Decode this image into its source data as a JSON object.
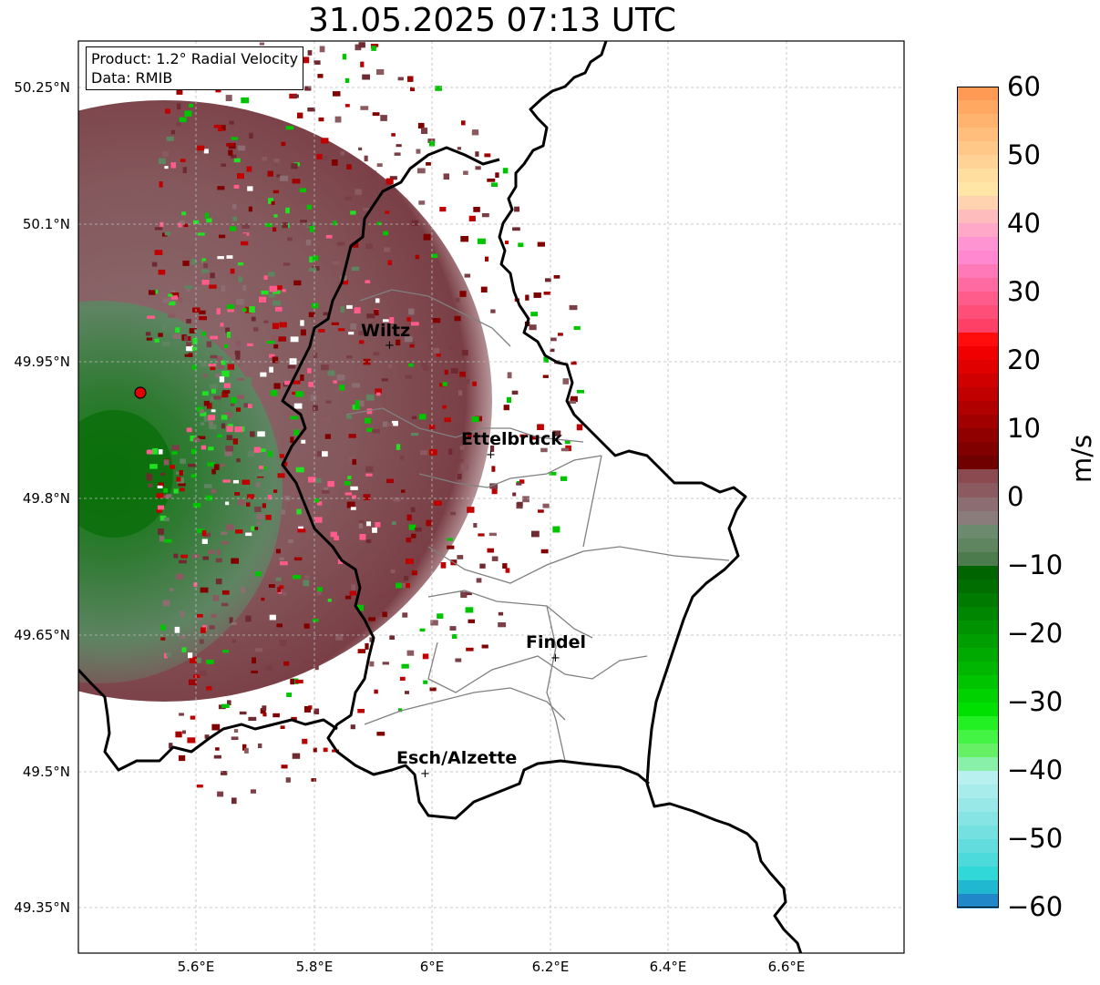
{
  "title": "31.05.2025 07:13 UTC",
  "info": {
    "product": "Product: 1.2° Radial Velocity",
    "data": "Data: RMIB"
  },
  "lat_labels": [
    "50.25°N",
    "50.1°N",
    "49.95°N",
    "49.8°N",
    "49.65°N",
    "49.5°N",
    "49.35°N"
  ],
  "lon_labels": [
    "5.6°E",
    "5.8°E",
    "6°E",
    "6.2°E",
    "6.4°E",
    "6.6°E"
  ],
  "cities": [
    {
      "name": "Wiltz"
    },
    {
      "name": "Ettelbruck"
    },
    {
      "name": "Findel"
    },
    {
      "name": "Esch/Alzette"
    }
  ],
  "colorbar": {
    "label": "m/s",
    "ticks": [
      "60",
      "50",
      "40",
      "30",
      "20",
      "10",
      "0",
      "−10",
      "−20",
      "−30",
      "−40",
      "−50",
      "−60"
    ],
    "min": -60,
    "max": 60
  },
  "colors": {
    "radar_site": "#e00000",
    "border": "#000000",
    "canton": "#808080"
  }
}
